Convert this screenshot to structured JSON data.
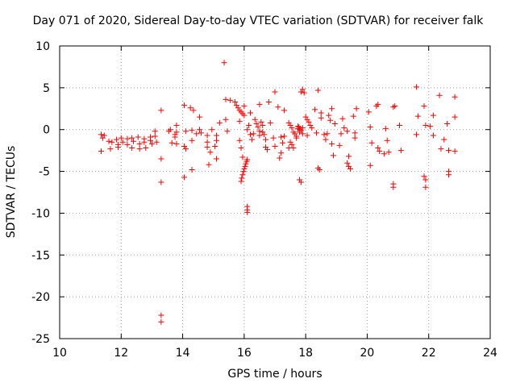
{
  "chart_data": {
    "type": "scatter",
    "title": "Day 071 of 2020, Sidereal Day-to-day VTEC variation (SDTVAR) for receiver falk",
    "xlabel": "GPS time / hours",
    "ylabel": "SDTVAR / TECUs",
    "xlim": [
      10,
      24
    ],
    "ylim": [
      -25,
      10
    ],
    "xticks": [
      10,
      12,
      14,
      16,
      18,
      20,
      22,
      24
    ],
    "yticks": [
      -25,
      -20,
      -15,
      -10,
      -5,
      0,
      5,
      10
    ],
    "grid": true,
    "marker": "+",
    "marker_color": "#ff0000",
    "series": [
      {
        "name": "SDTVAR",
        "points": [
          [
            11.35,
            -0.6
          ],
          [
            11.35,
            -2.6
          ],
          [
            11.4,
            -1.0
          ],
          [
            11.45,
            -0.7
          ],
          [
            11.6,
            -1.4
          ],
          [
            11.65,
            -2.3
          ],
          [
            11.7,
            -1.5
          ],
          [
            11.85,
            -1.2
          ],
          [
            11.9,
            -1.8
          ],
          [
            11.9,
            -2.1
          ],
          [
            12.0,
            -1.0
          ],
          [
            12.05,
            -1.5
          ],
          [
            12.2,
            -1.1
          ],
          [
            12.2,
            -1.8
          ],
          [
            12.35,
            -1.0
          ],
          [
            12.35,
            -2.2
          ],
          [
            12.4,
            -1.4
          ],
          [
            12.55,
            -0.9
          ],
          [
            12.6,
            -1.7
          ],
          [
            12.6,
            -2.3
          ],
          [
            12.75,
            -1.1
          ],
          [
            12.75,
            -1.5
          ],
          [
            12.8,
            -2.2
          ],
          [
            12.95,
            -0.9
          ],
          [
            12.95,
            -1.3
          ],
          [
            13.0,
            -1.7
          ],
          [
            13.1,
            -0.2
          ],
          [
            13.1,
            -0.8
          ],
          [
            13.15,
            -1.5
          ],
          [
            13.3,
            2.3
          ],
          [
            13.3,
            -3.5
          ],
          [
            13.3,
            -6.3
          ],
          [
            13.3,
            -22.2
          ],
          [
            13.3,
            -23.0
          ],
          [
            13.55,
            -0.2
          ],
          [
            13.6,
            0.0
          ],
          [
            13.65,
            -1.6
          ],
          [
            13.75,
            -0.6
          ],
          [
            13.75,
            -0.9
          ],
          [
            13.8,
            0.5
          ],
          [
            13.8,
            -0.3
          ],
          [
            13.8,
            -1.7
          ],
          [
            14.05,
            2.9
          ],
          [
            14.05,
            -2.0
          ],
          [
            14.05,
            -5.7
          ],
          [
            14.1,
            -0.2
          ],
          [
            14.1,
            -2.3
          ],
          [
            14.25,
            2.6
          ],
          [
            14.3,
            -0.1
          ],
          [
            14.3,
            -1.3
          ],
          [
            14.3,
            -4.8
          ],
          [
            14.35,
            2.3
          ],
          [
            14.45,
            -0.5
          ],
          [
            14.55,
            0.0
          ],
          [
            14.55,
            1.5
          ],
          [
            14.6,
            -0.4
          ],
          [
            14.8,
            -0.7
          ],
          [
            14.8,
            -1.5
          ],
          [
            14.8,
            -2.1
          ],
          [
            14.85,
            -4.2
          ],
          [
            14.9,
            -2.7
          ],
          [
            14.95,
            0.0
          ],
          [
            15.05,
            -2.0
          ],
          [
            15.1,
            -3.5
          ],
          [
            15.1,
            -1.3
          ],
          [
            15.1,
            -0.7
          ],
          [
            15.2,
            0.8
          ],
          [
            15.35,
            8.0
          ],
          [
            15.4,
            3.6
          ],
          [
            15.4,
            1.2
          ],
          [
            15.45,
            -0.2
          ],
          [
            15.55,
            3.5
          ],
          [
            15.7,
            3.3
          ],
          [
            15.75,
            2.9
          ],
          [
            15.8,
            2.6
          ],
          [
            15.85,
            2.3
          ],
          [
            15.9,
            2.1
          ],
          [
            15.95,
            1.9
          ],
          [
            16.0,
            1.7
          ],
          [
            15.85,
            1.0
          ],
          [
            15.85,
            -1.3
          ],
          [
            15.9,
            -2.2
          ],
          [
            15.95,
            -3.3
          ],
          [
            15.9,
            -6.2
          ],
          [
            15.92,
            -5.8
          ],
          [
            15.95,
            -5.4
          ],
          [
            15.98,
            -5.0
          ],
          [
            16.0,
            -4.7
          ],
          [
            16.03,
            -4.4
          ],
          [
            16.05,
            -4.1
          ],
          [
            16.08,
            -3.8
          ],
          [
            16.1,
            -3.6
          ],
          [
            16.1,
            -9.2
          ],
          [
            16.1,
            -9.6
          ],
          [
            16.1,
            -9.9
          ],
          [
            16.0,
            2.8
          ],
          [
            16.1,
            0.0
          ],
          [
            16.15,
            0.5
          ],
          [
            16.2,
            -0.6
          ],
          [
            16.2,
            2.0
          ],
          [
            16.25,
            -1.2
          ],
          [
            16.3,
            -0.5
          ],
          [
            16.35,
            1.2
          ],
          [
            16.4,
            0.7
          ],
          [
            16.45,
            0.3
          ],
          [
            16.5,
            -0.2
          ],
          [
            16.5,
            -0.7
          ],
          [
            16.5,
            3.0
          ],
          [
            16.55,
            0.9
          ],
          [
            16.6,
            0.5
          ],
          [
            16.6,
            -0.3
          ],
          [
            16.65,
            -0.6
          ],
          [
            16.7,
            -1.2
          ],
          [
            16.7,
            -2.1
          ],
          [
            16.75,
            -2.4
          ],
          [
            16.8,
            3.3
          ],
          [
            16.85,
            0.8
          ],
          [
            16.95,
            -1.0
          ],
          [
            17.0,
            -2.0
          ],
          [
            17.0,
            4.5
          ],
          [
            17.1,
            2.7
          ],
          [
            17.15,
            -3.4
          ],
          [
            17.2,
            -0.9
          ],
          [
            17.2,
            -2.8
          ],
          [
            17.25,
            -1.6
          ],
          [
            17.3,
            -0.8
          ],
          [
            17.3,
            2.3
          ],
          [
            17.45,
            0.8
          ],
          [
            17.45,
            -2.2
          ],
          [
            17.5,
            0.5
          ],
          [
            17.55,
            0.2
          ],
          [
            17.6,
            -0.3
          ],
          [
            17.65,
            -0.5
          ],
          [
            17.7,
            -0.8
          ],
          [
            17.5,
            -1.5
          ],
          [
            17.55,
            -1.8
          ],
          [
            17.6,
            -2.2
          ],
          [
            17.7,
            -1.0
          ],
          [
            17.75,
            0.4
          ],
          [
            17.75,
            0.1
          ],
          [
            17.78,
            0.3
          ],
          [
            17.8,
            0.0
          ],
          [
            17.8,
            -0.3
          ],
          [
            17.85,
            -0.1
          ],
          [
            17.9,
            0.2
          ],
          [
            17.9,
            -0.5
          ],
          [
            17.85,
            4.5
          ],
          [
            17.9,
            4.8
          ],
          [
            17.95,
            4.4
          ],
          [
            17.8,
            -6.0
          ],
          [
            17.85,
            -6.3
          ],
          [
            18.0,
            1.5
          ],
          [
            18.05,
            1.2
          ],
          [
            18.1,
            0.9
          ],
          [
            18.15,
            0.5
          ],
          [
            18.05,
            -0.7
          ],
          [
            18.2,
            0.2
          ],
          [
            18.3,
            2.4
          ],
          [
            18.35,
            -0.4
          ],
          [
            18.4,
            4.7
          ],
          [
            18.4,
            -4.6
          ],
          [
            18.45,
            -4.8
          ],
          [
            18.5,
            2.0
          ],
          [
            18.5,
            1.4
          ],
          [
            18.6,
            -0.6
          ],
          [
            18.65,
            -1.2
          ],
          [
            18.7,
            -0.5
          ],
          [
            18.75,
            1.7
          ],
          [
            18.8,
            1.1
          ],
          [
            18.85,
            2.5
          ],
          [
            18.85,
            -1.7
          ],
          [
            18.9,
            -3.1
          ],
          [
            18.95,
            0.7
          ],
          [
            19.1,
            -1.9
          ],
          [
            19.15,
            -0.5
          ],
          [
            19.2,
            1.3
          ],
          [
            19.25,
            0.2
          ],
          [
            19.35,
            -0.2
          ],
          [
            19.35,
            -4.0
          ],
          [
            19.4,
            -3.2
          ],
          [
            19.4,
            -4.4
          ],
          [
            19.45,
            -4.7
          ],
          [
            19.55,
            1.6
          ],
          [
            19.6,
            -0.4
          ],
          [
            19.6,
            -1.0
          ],
          [
            19.65,
            2.5
          ],
          [
            20.05,
            2.1
          ],
          [
            20.1,
            0.3
          ],
          [
            20.1,
            -4.3
          ],
          [
            20.15,
            -1.6
          ],
          [
            20.3,
            2.8
          ],
          [
            20.35,
            3.0
          ],
          [
            20.35,
            -2.2
          ],
          [
            20.4,
            -2.6
          ],
          [
            20.55,
            -2.9
          ],
          [
            20.6,
            0.1
          ],
          [
            20.65,
            -1.3
          ],
          [
            20.7,
            -2.7
          ],
          [
            20.85,
            2.7
          ],
          [
            20.9,
            2.8
          ],
          [
            20.85,
            -6.5
          ],
          [
            20.85,
            -6.9
          ],
          [
            21.05,
            0.5
          ],
          [
            21.1,
            -2.5
          ],
          [
            21.6,
            5.1
          ],
          [
            21.65,
            1.6
          ],
          [
            21.6,
            -0.6
          ],
          [
            21.85,
            2.8
          ],
          [
            21.9,
            0.5
          ],
          [
            21.85,
            -5.6
          ],
          [
            21.9,
            -6.0
          ],
          [
            21.9,
            -6.9
          ],
          [
            22.05,
            0.4
          ],
          [
            22.15,
            1.7
          ],
          [
            22.15,
            -0.7
          ],
          [
            22.35,
            4.1
          ],
          [
            22.4,
            -2.3
          ],
          [
            22.5,
            -1.2
          ],
          [
            22.6,
            0.7
          ],
          [
            22.65,
            -2.5
          ],
          [
            22.65,
            -5.0
          ],
          [
            22.65,
            -5.4
          ],
          [
            22.85,
            3.9
          ],
          [
            22.85,
            1.5
          ],
          [
            22.85,
            -2.6
          ]
        ]
      }
    ]
  }
}
